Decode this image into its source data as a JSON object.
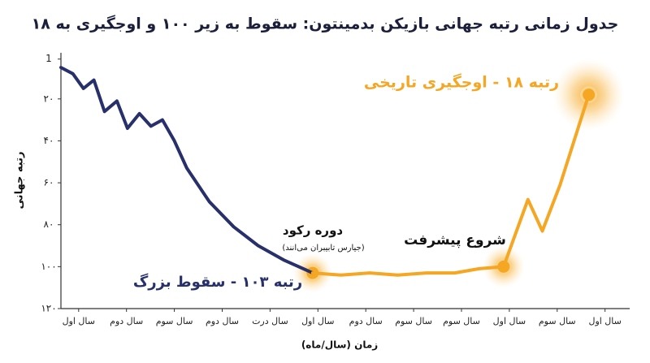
{
  "chart_data": {
    "type": "line",
    "title": "جدول زمانی رتبه جهانی بازیکن بدمینتون: سقوط به زیر ۱۰۰ و اوجگیری به ۱۸",
    "y_label": "رتبه جهانی",
    "x_label": "زمان (سال/ماه)",
    "ylim": [
      -2,
      120
    ],
    "y_inverted": true,
    "yticks": [
      1,
      {
        "value": 20,
        "label": "۲۰"
      },
      {
        "value": 40,
        "label": "۴۰"
      },
      {
        "value": 60,
        "label": "۶۰"
      },
      {
        "value": 80,
        "label": "۸۰"
      },
      {
        "value": 100,
        "label": "۱۰۰"
      },
      {
        "value": 120,
        "label": "۱۲۰"
      }
    ],
    "xlim": [
      -0.37,
      11.43
    ],
    "xticks": [
      {
        "value": 0,
        "label": "سال اول"
      },
      {
        "value": 1,
        "label": "سال دوم"
      },
      {
        "value": 2,
        "label": "سال سوم"
      },
      {
        "value": 3,
        "label": "سال دوم"
      },
      {
        "value": 4,
        "label": "سال درت"
      },
      {
        "value": 5,
        "label": "سال اول"
      },
      {
        "value": 6,
        "label": "سال دوم"
      },
      {
        "value": 7,
        "label": "سال سوم"
      },
      {
        "value": 8,
        "label": "سال سوم"
      },
      {
        "value": 9,
        "label": "سال اول"
      },
      {
        "value": 10,
        "label": "سال سوم"
      },
      {
        "value": 11,
        "label": "سال اول"
      }
    ],
    "series": [
      {
        "color": "#27306b",
        "x": [
          -0.37,
          -0.12,
          0.1,
          0.32,
          0.54,
          0.8,
          1.02,
          1.27,
          1.51,
          1.75,
          2.0,
          2.26,
          2.73,
          3.24,
          3.75,
          4.3,
          4.89
        ],
        "values": [
          5,
          8,
          15,
          11,
          26,
          21,
          34,
          27,
          33,
          30,
          40,
          53,
          69,
          81,
          90,
          97,
          103
        ]
      },
      {
        "color": "#f5a623",
        "x": [
          4.89,
          5.48,
          6.08,
          6.67,
          7.27,
          7.86,
          8.37,
          8.88,
          9.39,
          9.69,
          10.06,
          10.66
        ],
        "values": [
          103,
          104,
          103,
          104,
          103,
          103,
          101,
          100,
          68,
          83,
          61,
          18
        ]
      }
    ],
    "annotations": [
      {
        "text": "رتبه ۱۸ - اوجگیری تاریخی",
        "color": "#f5a623"
      },
      {
        "text": "دوره رکود",
        "color": "#111111"
      },
      {
        "text": "(جیارس تابیبران می‌انند)",
        "color": "#111111"
      },
      {
        "text": "شروع پیشرفت",
        "color": "#111111"
      },
      {
        "text": "رتبه ۱۰۳ - سقوط بزرگ",
        "color": "#27306b"
      }
    ]
  }
}
